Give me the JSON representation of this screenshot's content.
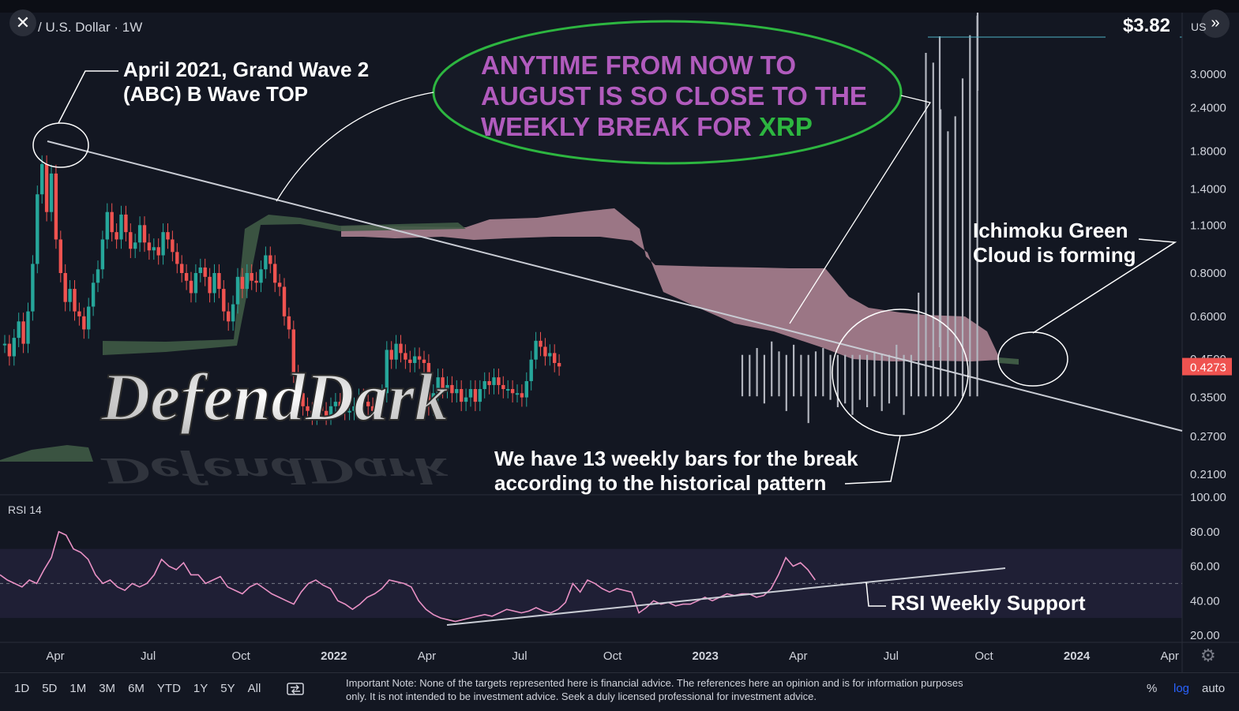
{
  "header": {
    "symbol_title": "/ U.S. Dollar · 1W",
    "currency_label": "US",
    "close_icon": "close-icon",
    "expand_icon": "double-chevron-right-icon",
    "target_price": "$3.82"
  },
  "chart_data": {
    "type": "candlestick",
    "interval": "1W",
    "scale": "log",
    "y_ticks": [
      "3.0000",
      "2.4000",
      "1.8000",
      "1.4000",
      "1.1000",
      "0.8000",
      "0.6000",
      "0.3500",
      "0.2700",
      "0.2100"
    ],
    "y_tick_values": [
      3.0,
      2.4,
      1.8,
      1.4,
      1.1,
      0.8,
      0.6,
      0.35,
      0.27,
      0.21
    ],
    "y_tick_partial": "0.4500",
    "current_price": "0.4273",
    "current_price_value": 0.4273,
    "target_line_value": 3.82,
    "x_ticks": [
      "Apr",
      "Jul",
      "Oct",
      "2022",
      "Apr",
      "Jul",
      "Oct",
      "2023",
      "Apr",
      "Jul",
      "Oct",
      "2024",
      "Apr"
    ],
    "x_tick_bold": [
      false,
      false,
      false,
      true,
      false,
      false,
      false,
      true,
      false,
      false,
      false,
      true,
      false
    ],
    "colors": {
      "up": "#26a69a",
      "down": "#ef5350",
      "projection": "#b2b5be",
      "cloud_bear": "#b48797",
      "cloud_bull": "#3f5a45",
      "rsi": "#e991c5",
      "trendline": "#c9ccd4"
    },
    "price_path": [
      0.5,
      0.46,
      0.52,
      0.58,
      0.5,
      0.62,
      0.85,
      1.35,
      1.65,
      1.2,
      1.55,
      1.0,
      0.8,
      0.66,
      0.72,
      0.62,
      0.6,
      0.55,
      0.64,
      0.75,
      0.82,
      1.0,
      1.2,
      1.05,
      1.0,
      1.18,
      1.05,
      0.94,
      0.98,
      1.1,
      0.98,
      0.93,
      0.95,
      0.9,
      1.05,
      1.0,
      0.92,
      0.85,
      0.8,
      0.76,
      0.7,
      0.8,
      0.83,
      0.78,
      0.7,
      0.8,
      0.72,
      0.62,
      0.58,
      0.65,
      0.78,
      0.72,
      0.8,
      0.76,
      0.75,
      0.82,
      0.9,
      0.85,
      0.75,
      0.73,
      0.6,
      0.55,
      0.41,
      0.36,
      0.33,
      0.32,
      0.31,
      0.33,
      0.32,
      0.31,
      0.33,
      0.34,
      0.33,
      0.32,
      0.32,
      0.33,
      0.35,
      0.34,
      0.33,
      0.32,
      0.34,
      0.36,
      0.48,
      0.45,
      0.5,
      0.47,
      0.45,
      0.44,
      0.46,
      0.45,
      0.44,
      0.33,
      0.36,
      0.4,
      0.37,
      0.38,
      0.36,
      0.37,
      0.34,
      0.35,
      0.37,
      0.34,
      0.37,
      0.39,
      0.38,
      0.4,
      0.38,
      0.37,
      0.37,
      0.36,
      0.36,
      0.35,
      0.39,
      0.45,
      0.51,
      0.49,
      0.46,
      0.47,
      0.44,
      0.43
    ],
    "projection_path": [
      0.43,
      0.43,
      0.45,
      0.41,
      0.47,
      0.44,
      0.39,
      0.46,
      0.43,
      0.36,
      0.44,
      0.45,
      0.42,
      0.4,
      0.41,
      0.38,
      0.42,
      0.4,
      0.44,
      0.39,
      0.41,
      0.46,
      0.38,
      0.43,
      0.65,
      3.2,
      3.0,
      2.2,
      1.9,
      2.1,
      2.7,
      3.6,
      4.1
    ],
    "rsi_path": [
      55,
      52,
      50,
      48,
      52,
      50,
      58,
      65,
      80,
      78,
      70,
      68,
      64,
      55,
      50,
      52,
      48,
      46,
      50,
      48,
      50,
      55,
      64,
      60,
      58,
      62,
      55,
      55,
      50,
      52,
      54,
      48,
      46,
      44,
      48,
      50,
      47,
      44,
      42,
      40,
      38,
      45,
      50,
      52,
      49,
      47,
      40,
      38,
      35,
      38,
      42,
      44,
      47,
      52,
      51,
      50,
      48,
      40,
      35,
      32,
      30,
      29,
      28,
      29,
      30,
      31,
      32,
      31,
      33,
      35,
      34,
      33,
      34,
      36,
      34,
      33,
      35,
      39,
      50,
      45,
      52,
      50,
      47,
      45,
      47,
      46,
      45,
      33,
      36,
      40,
      38,
      39,
      37,
      38,
      38,
      40,
      42,
      40,
      42,
      44,
      43,
      44,
      44,
      42,
      43,
      47,
      55,
      65,
      60,
      62,
      58,
      52
    ],
    "rsi_ticks": [
      "100.00",
      "80.00",
      "60.00",
      "40.00",
      "20.00"
    ],
    "rsi_tick_values": [
      100,
      80,
      60,
      40,
      20
    ],
    "rsi_label": "RSI 14"
  },
  "annotations": {
    "april_top": [
      "April 2021, Grand Wave 2",
      "(ABC) B Wave TOP"
    ],
    "bubble_line1": "ANYTIME FROM NOW TO",
    "bubble_line2": "AUGUST IS SO CLOSE TO THE",
    "bubble_line3_pre": "WEEKLY BREAK FOR ",
    "bubble_line3_xrp": "XRP",
    "ichimoku": [
      "Ichimoku Green",
      "Cloud is forming"
    ],
    "weekly_bars": [
      "We have 13 weekly bars for the break",
      "according to the historical pattern"
    ],
    "rsi_support": "RSI Weekly Support",
    "watermark": "DefendDark"
  },
  "footer": {
    "ranges": [
      "1D",
      "5D",
      "1M",
      "3M",
      "6M",
      "YTD",
      "1Y",
      "5Y",
      "All"
    ],
    "compare_icon": "compare-icon",
    "note": "Important Note: None of the targets represented here is financial advice. The references here an opinion and is for information purposes only. It is not intended to be investment advice. Seek a duly licensed professional for investment advice.",
    "percent_label": "%",
    "log_label": "log",
    "auto_label": "auto",
    "settings_icon": "gear-icon"
  }
}
